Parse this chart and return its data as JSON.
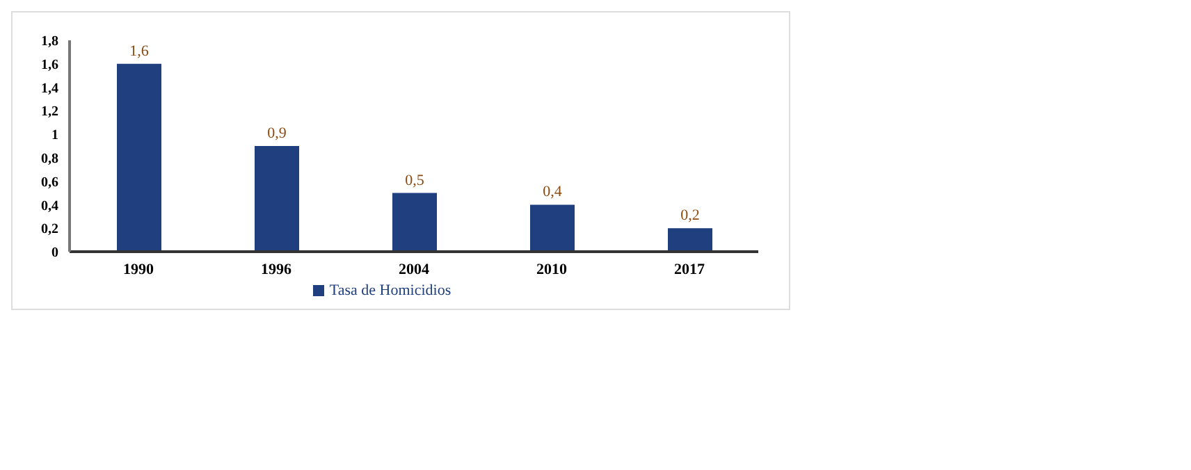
{
  "chart_data": {
    "type": "bar",
    "categories": [
      "1990",
      "1996",
      "2004",
      "2010",
      "2017"
    ],
    "series": [
      {
        "name": "Tasa de Homicidios",
        "color": "#1f3f7f",
        "values": [
          1.6,
          0.9,
          0.5,
          0.4,
          0.2
        ],
        "value_labels": [
          "1,6",
          "0,9",
          "0,5",
          "0,4",
          "0,2"
        ]
      }
    ],
    "ylim": [
      0,
      1.8
    ],
    "yticks": [
      {
        "value": 0,
        "label": "0"
      },
      {
        "value": 0.2,
        "label": "0,2"
      },
      {
        "value": 0.4,
        "label": "0,4"
      },
      {
        "value": 0.6,
        "label": "0,6"
      },
      {
        "value": 0.8,
        "label": "0,8"
      },
      {
        "value": 1,
        "label": "1"
      },
      {
        "value": 1.2,
        "label": "1,2"
      },
      {
        "value": 1.4,
        "label": "1,4"
      },
      {
        "value": 1.6,
        "label": "1,6"
      },
      {
        "value": 1.8,
        "label": "1,8"
      }
    ],
    "grid": false,
    "legend": "bottom"
  }
}
